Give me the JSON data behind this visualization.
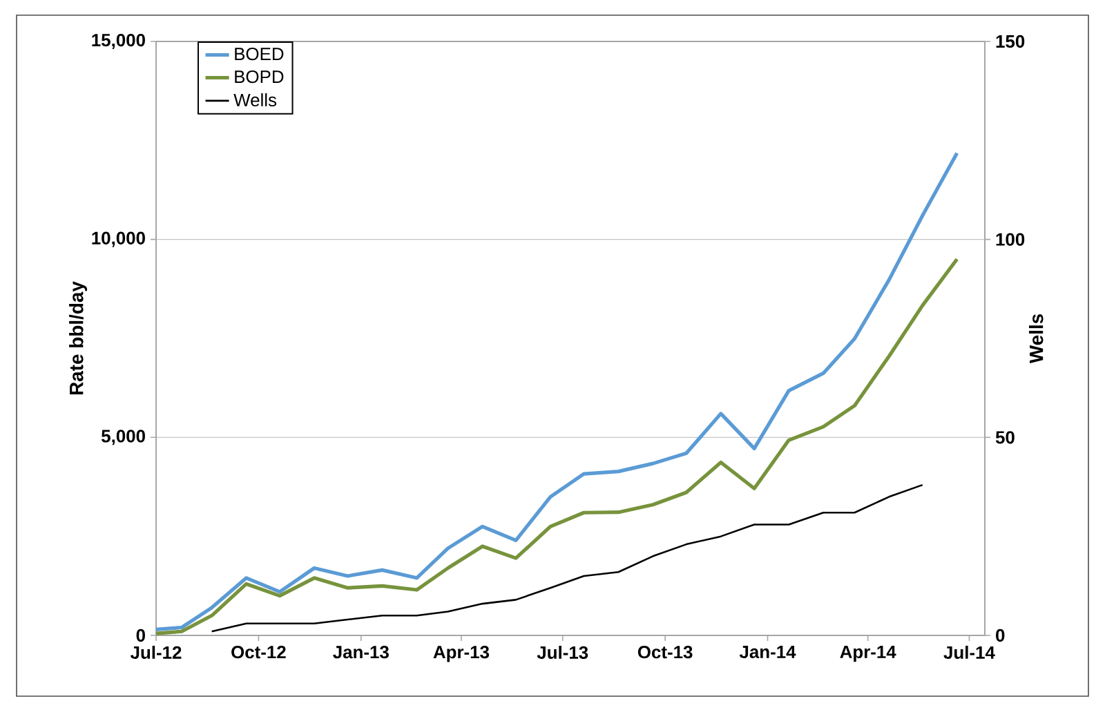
{
  "chart_data": {
    "type": "line",
    "ylabel": "Rate bbl/day",
    "y2label": "Wells",
    "x": [
      "2012-07-01",
      "2012-07-24",
      "2012-08-20",
      "2012-09-20",
      "2012-10-20",
      "2012-11-20",
      "2012-12-20",
      "2013-01-20",
      "2013-02-20",
      "2013-03-20",
      "2013-04-20",
      "2013-05-20",
      "2013-06-20",
      "2013-07-20",
      "2013-08-20",
      "2013-09-20",
      "2013-10-20",
      "2013-11-20",
      "2013-12-20",
      "2014-01-20",
      "2014-02-20",
      "2014-03-20",
      "2014-04-20",
      "2014-05-20",
      "2014-06-20"
    ],
    "series": [
      {
        "name": "BOED",
        "color": "#5b9bd5",
        "values": [
          150,
          200,
          700,
          1450,
          1100,
          1700,
          1500,
          1650,
          1450,
          2200,
          2750,
          2400,
          3500,
          4080,
          4140,
          4340,
          4600,
          5600,
          4720,
          6180,
          6620,
          7490,
          8980,
          10600,
          12180
        ]
      },
      {
        "name": "BOPD",
        "color": "#77933c",
        "values": [
          50,
          100,
          500,
          1300,
          1000,
          1450,
          1200,
          1250,
          1150,
          1700,
          2250,
          1950,
          2750,
          3100,
          3110,
          3300,
          3610,
          4370,
          3710,
          4930,
          5270,
          5800,
          7050,
          8330,
          9500
        ]
      },
      {
        "name": "Wells",
        "color": "#000000",
        "axis": "y2",
        "x": [
          "2012-08-20",
          "2012-09-20",
          "2012-10-20",
          "2012-11-20",
          "2012-12-20",
          "2013-01-20",
          "2013-02-20",
          "2013-03-20",
          "2013-04-20",
          "2013-05-20",
          "2013-06-20",
          "2013-07-20",
          "2013-08-20",
          "2013-09-20",
          "2013-10-20",
          "2013-11-20",
          "2013-12-20",
          "2014-01-20",
          "2014-02-20",
          "2014-03-20",
          "2014-04-20",
          "2014-05-20"
        ],
        "values": [
          1,
          3,
          3,
          3,
          4,
          5,
          5,
          6,
          8,
          9,
          12,
          15,
          16,
          20,
          23,
          25,
          28,
          28,
          31,
          31,
          35,
          38
        ]
      }
    ],
    "xlim": [
      "2012-07-01",
      "2014-07-15"
    ],
    "xticks": [
      {
        "value": "2012-07-01",
        "label": "Jul-12"
      },
      {
        "value": "2012-10-01",
        "label": "Oct-12"
      },
      {
        "value": "2013-01-01",
        "label": "Jan-13"
      },
      {
        "value": "2013-04-01",
        "label": "Apr-13"
      },
      {
        "value": "2013-07-01",
        "label": "Jul-13"
      },
      {
        "value": "2013-10-01",
        "label": "Oct-13"
      },
      {
        "value": "2014-01-01",
        "label": "Jan-14"
      },
      {
        "value": "2014-04-01",
        "label": "Apr-14"
      },
      {
        "value": "2014-07-01",
        "label": "Jul-14"
      }
    ],
    "ylim": [
      0,
      15000
    ],
    "yticks": [
      0,
      {
        "value": 5000,
        "label": "5,000"
      },
      {
        "value": 10000,
        "label": "10,000"
      },
      {
        "value": 15000,
        "label": "15,000"
      }
    ],
    "y2lim": [
      0,
      150
    ],
    "y2ticks": [
      0,
      50,
      100,
      150
    ],
    "grid": "y",
    "legend": "top left",
    "marker": "none",
    "line_style": "solid"
  }
}
